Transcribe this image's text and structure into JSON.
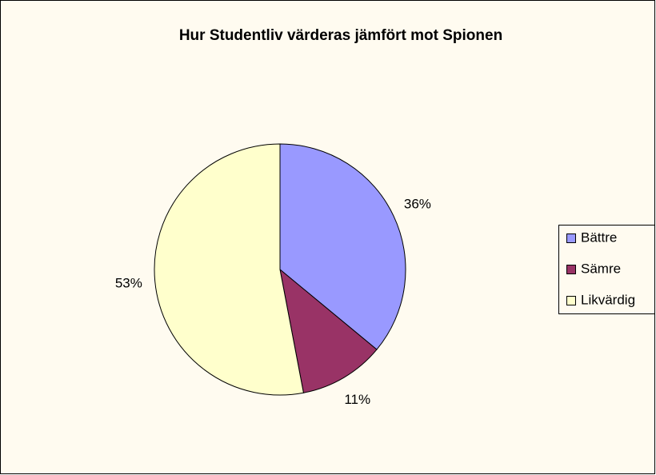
{
  "chart_data": {
    "type": "pie",
    "title": "Hur Studentliv värderas jämfört mot Spionen",
    "categories": [
      "Bättre",
      "Sämre",
      "Likvärdig"
    ],
    "values": [
      36,
      11,
      53
    ],
    "value_labels": [
      "36%",
      "11%",
      "53%"
    ],
    "colors": [
      "#9999ff",
      "#993366",
      "#ffffcc"
    ],
    "legend": "right"
  }
}
